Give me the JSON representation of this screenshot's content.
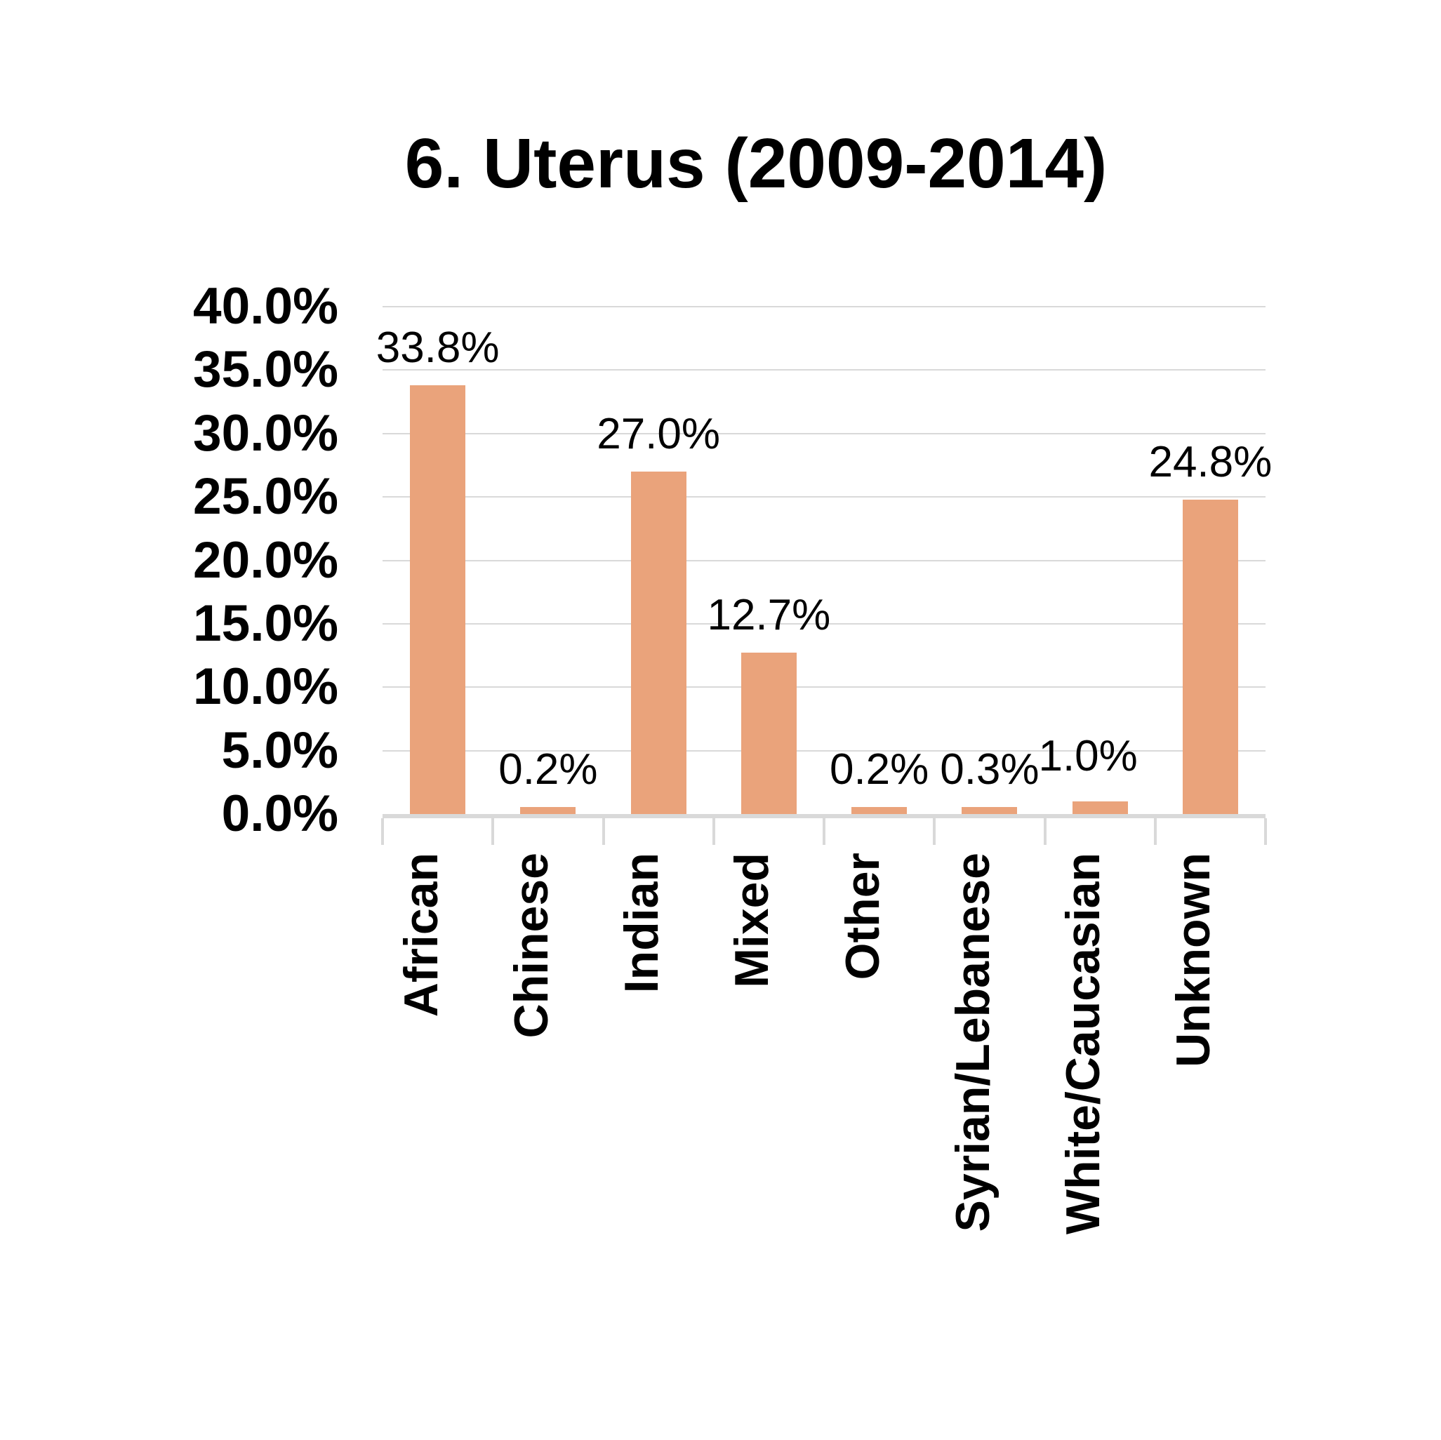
{
  "chart_data": {
    "type": "bar",
    "title": "6. Uterus (2009-2014)",
    "categories": [
      "African",
      "Chinese",
      "Indian",
      "Mixed",
      "Other",
      "Syrian/Lebanese",
      "White/Caucasian",
      "Unknown"
    ],
    "values": [
      33.8,
      0.2,
      27.0,
      12.7,
      0.2,
      0.3,
      1.0,
      24.8
    ],
    "bar_labels": [
      "33.8%",
      "0.2%",
      "27.0%",
      "12.7%",
      "0.2%",
      "0.3%",
      "1.0%",
      "24.8%"
    ],
    "y_tick_labels": [
      "0.0%",
      "5.0%",
      "10.0%",
      "15.0%",
      "20.0%",
      "25.0%",
      "30.0%",
      "35.0%",
      "40.0%"
    ],
    "y_tick_values": [
      0,
      5,
      10,
      15,
      20,
      25,
      30,
      35,
      40
    ],
    "ylim": [
      0,
      40
    ],
    "xlabel": "",
    "ylabel": "",
    "grid": "horizontal",
    "legend": null,
    "bar_color": "#EAA37B",
    "grid_color": "#D9D9D9",
    "axis_color": "#D9D9D9",
    "text_color": "#000000",
    "background_color": "#FFFFFF"
  }
}
